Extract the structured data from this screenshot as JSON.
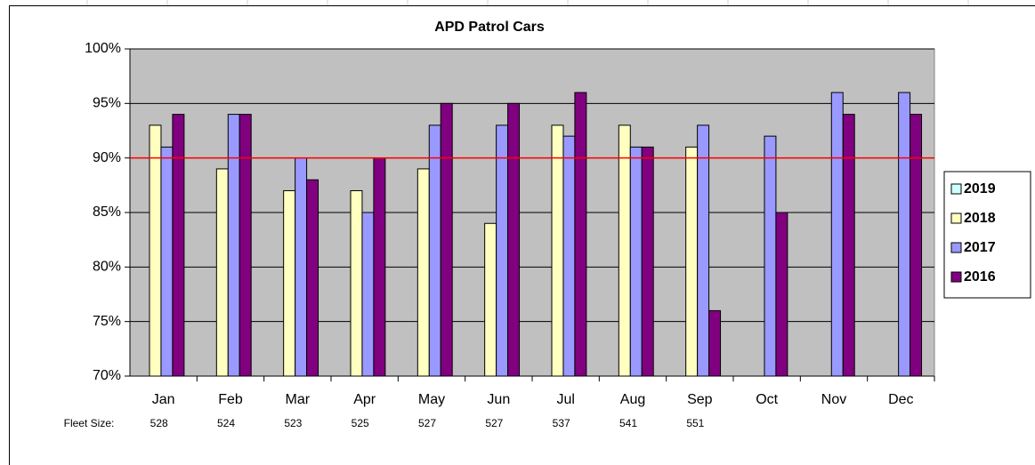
{
  "chart_data": {
    "type": "bar",
    "title": "APD Patrol Cars",
    "categories": [
      "Jan",
      "Feb",
      "Mar",
      "Apr",
      "May",
      "Jun",
      "Jul",
      "Aug",
      "Sep",
      "Oct",
      "Nov",
      "Dec"
    ],
    "series": [
      {
        "name": "2019",
        "color": "#ccffff",
        "values": [
          null,
          null,
          null,
          null,
          null,
          null,
          null,
          null,
          null,
          null,
          null,
          null
        ]
      },
      {
        "name": "2018",
        "color": "#ffffc0",
        "values": [
          93,
          89,
          87,
          87,
          89,
          84,
          93,
          93,
          91,
          null,
          null,
          null
        ]
      },
      {
        "name": "2017",
        "color": "#9999ff",
        "values": [
          91,
          94,
          90,
          85,
          93,
          93,
          92,
          91,
          93,
          92,
          96,
          96
        ]
      },
      {
        "name": "2016",
        "color": "#800080",
        "values": [
          94,
          94,
          88,
          90,
          95,
          95,
          96,
          91,
          76,
          85,
          94,
          94
        ]
      }
    ],
    "ylim": [
      70,
      100
    ],
    "yticks": [
      {
        "value": 70,
        "label": "70%"
      },
      {
        "value": 75,
        "label": "75%"
      },
      {
        "value": 80,
        "label": "80%"
      },
      {
        "value": 85,
        "label": "85%"
      },
      {
        "value": 90,
        "label": "90%"
      },
      {
        "value": 95,
        "label": "95%"
      },
      {
        "value": 100,
        "label": "100%"
      }
    ],
    "grid": true,
    "plot_background": "#c0c0c0",
    "reference_line": {
      "value": 90,
      "color": "#ff0000"
    },
    "legend": "right",
    "fleet_size_label": "Fleet Size:",
    "fleet_size": [
      528,
      524,
      523,
      525,
      527,
      527,
      537,
      541,
      551,
      null,
      null,
      null
    ]
  }
}
